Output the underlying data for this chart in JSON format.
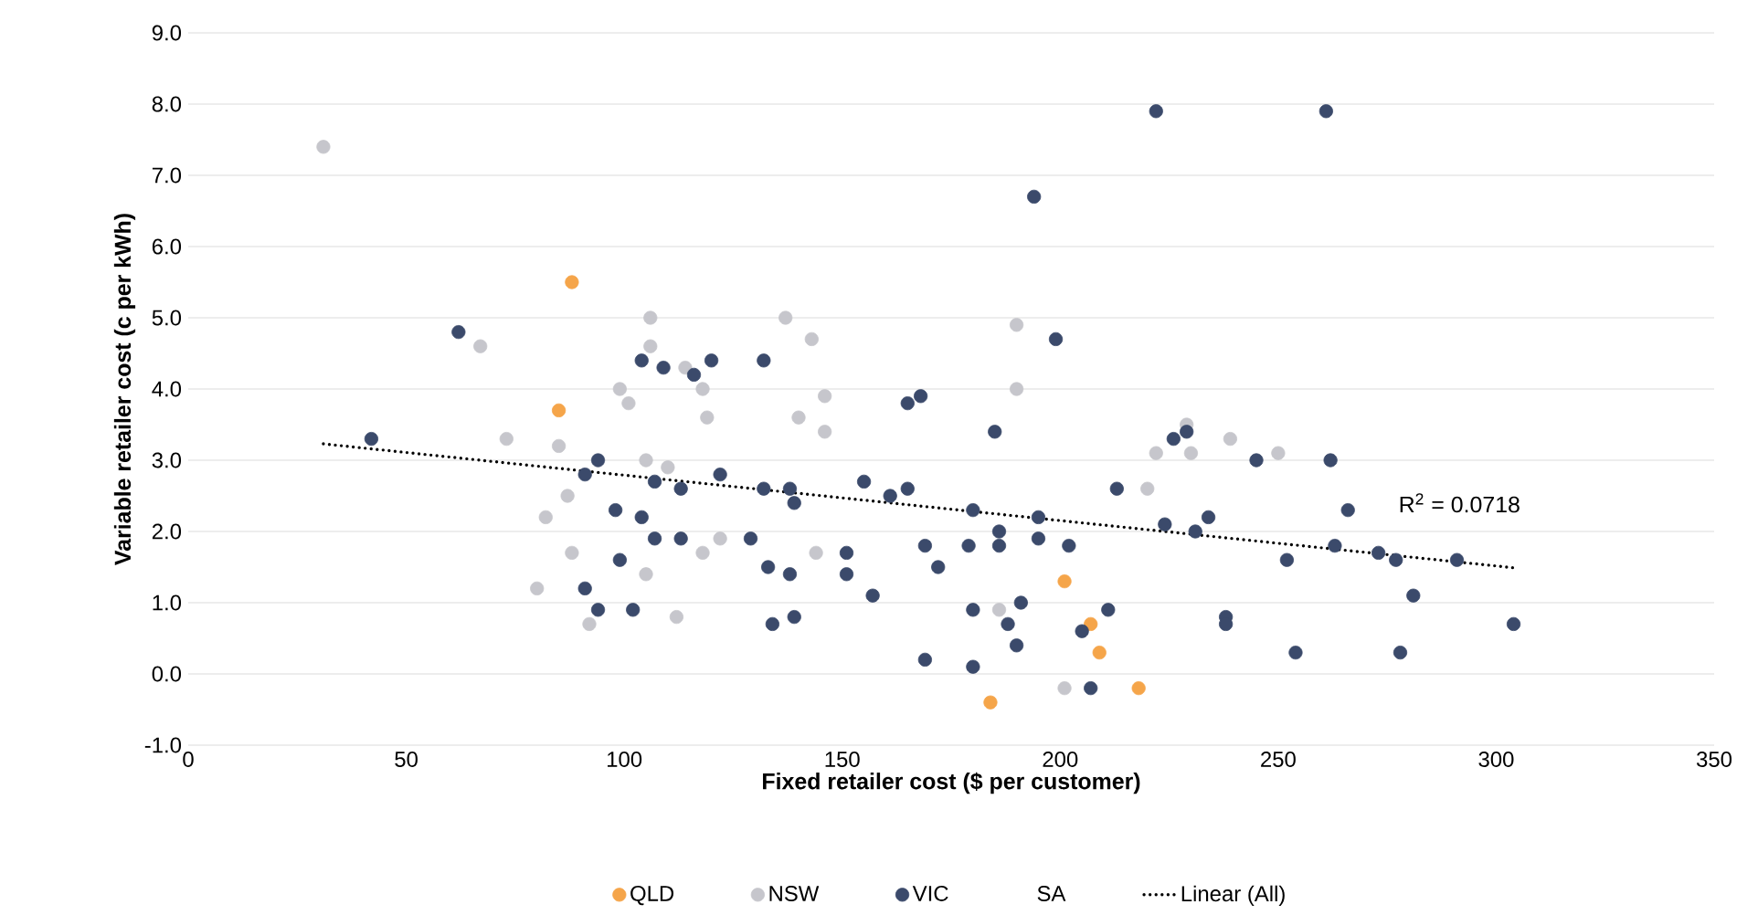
{
  "chart_data": {
    "type": "scatter",
    "xlabel": "Fixed retailer cost ($ per customer)",
    "ylabel": "Variable retailer cost (c per kWh)",
    "xlim": [
      0,
      350
    ],
    "xticks": [
      0,
      50,
      100,
      150,
      200,
      250,
      300,
      350
    ],
    "ylim": [
      -1,
      9
    ],
    "yticks": [
      {
        "value": -1,
        "label": "-1.0"
      },
      {
        "value": 0,
        "label": "0.0"
      },
      {
        "value": 1,
        "label": "1.0"
      },
      {
        "value": 2,
        "label": "2.0"
      },
      {
        "value": 3,
        "label": "3.0"
      },
      {
        "value": 4,
        "label": "4.0"
      },
      {
        "value": 5,
        "label": "5.0"
      },
      {
        "value": 6,
        "label": "6.0"
      },
      {
        "value": 7,
        "label": "7.0"
      },
      {
        "value": 8,
        "label": "8.0"
      },
      {
        "value": 9,
        "label": "9.0"
      }
    ],
    "grid": "y",
    "legend": "bottom",
    "marker": "circle",
    "annotations": [
      "R$^{2}$ = 0.0718"
    ],
    "series": [
      {
        "name": "QLD",
        "color": "#f5a54a",
        "x": [
          88,
          85,
          201,
          207,
          209,
          184,
          218
        ],
        "values": [
          5.5,
          3.7,
          1.3,
          0.7,
          0.3,
          -0.4,
          -0.2
        ]
      },
      {
        "name": "NSW",
        "color": "#c6c6cc",
        "x": [
          31,
          67,
          73,
          85,
          87,
          82,
          118,
          122,
          105,
          110,
          106,
          106,
          114,
          118,
          99,
          101,
          119,
          88,
          92,
          80,
          105,
          112,
          137,
          143,
          190,
          190,
          140,
          146,
          146,
          229,
          222,
          230,
          239,
          220,
          144,
          186,
          201,
          250
        ],
        "values": [
          7.4,
          4.6,
          3.3,
          3.2,
          2.5,
          2.2,
          1.7,
          1.9,
          3.0,
          2.9,
          5.0,
          4.6,
          4.3,
          4.0,
          4.0,
          3.8,
          3.6,
          1.7,
          0.7,
          1.2,
          1.4,
          0.8,
          5.0,
          4.7,
          4.9,
          4.0,
          3.6,
          3.9,
          3.4,
          3.5,
          3.1,
          3.1,
          3.3,
          2.6,
          1.7,
          0.9,
          -0.2,
          3.1
        ]
      },
      {
        "name": "VIC",
        "color": "#3b4a6b",
        "x": [
          62,
          42,
          94,
          91,
          98,
          104,
          107,
          113,
          107,
          113,
          122,
          104,
          109,
          116,
          120,
          91,
          94,
          99,
          102,
          222,
          194,
          132,
          199,
          165,
          168,
          185,
          226,
          229,
          132,
          138,
          139,
          155,
          161,
          165,
          180,
          195,
          213,
          224,
          234,
          231,
          129,
          133,
          138,
          151,
          151,
          157,
          169,
          172,
          179,
          186,
          186,
          195,
          202,
          134,
          139,
          180,
          191,
          188,
          190,
          211,
          205,
          169,
          180,
          207,
          238,
          238,
          261,
          245,
          262,
          266,
          252,
          263,
          273,
          277,
          291,
          281,
          304,
          254,
          278
        ],
        "values": [
          4.8,
          3.3,
          3.0,
          2.8,
          2.3,
          2.2,
          1.9,
          1.9,
          2.7,
          2.6,
          2.8,
          4.4,
          4.3,
          4.2,
          4.4,
          1.2,
          0.9,
          1.6,
          0.9,
          7.9,
          6.7,
          4.4,
          4.7,
          3.8,
          3.9,
          3.4,
          3.3,
          3.4,
          2.6,
          2.6,
          2.4,
          2.7,
          2.5,
          2.6,
          2.3,
          2.2,
          2.6,
          2.1,
          2.2,
          2.0,
          1.9,
          1.5,
          1.4,
          1.7,
          1.4,
          1.1,
          1.8,
          1.5,
          1.8,
          2.0,
          1.8,
          1.9,
          1.8,
          0.7,
          0.8,
          0.9,
          1.0,
          0.7,
          0.4,
          0.9,
          0.6,
          0.2,
          0.1,
          -0.2,
          0.8,
          0.7,
          7.9,
          3.0,
          3.0,
          2.3,
          1.6,
          1.8,
          1.7,
          1.6,
          1.6,
          1.1,
          0.7,
          0.3,
          0.3
        ]
      },
      {
        "name": "SA"
      },
      {
        "name": "Linear (All)",
        "type": "line",
        "color": "#000000",
        "line_style": "dotted",
        "marker": "none",
        "x": [
          31,
          304
        ],
        "values": [
          3.23,
          1.49
        ]
      }
    ]
  }
}
